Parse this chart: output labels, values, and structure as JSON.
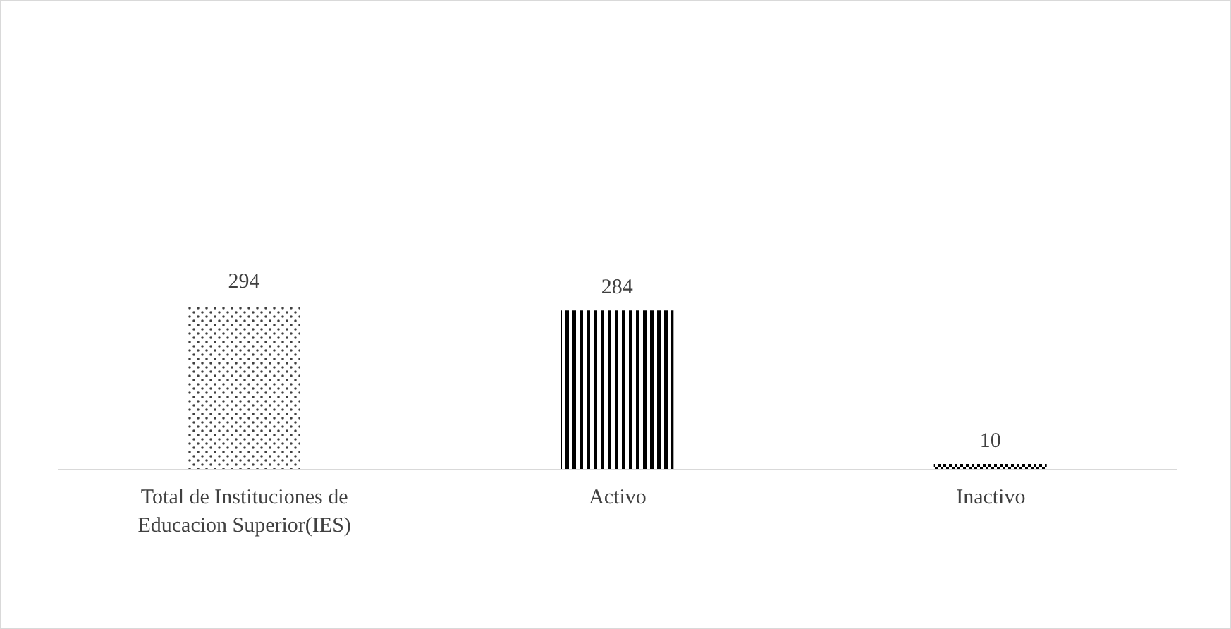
{
  "chart_data": {
    "type": "bar",
    "categories": [
      "Total de Instituciones de Educacion Superior(IES)",
      "Activo",
      "Inactivo"
    ],
    "values": [
      294,
      284,
      10
    ],
    "colors": [
      "#404040",
      "#000000",
      "#000000"
    ],
    "data_labels": true,
    "grid": false,
    "legend": false
  }
}
